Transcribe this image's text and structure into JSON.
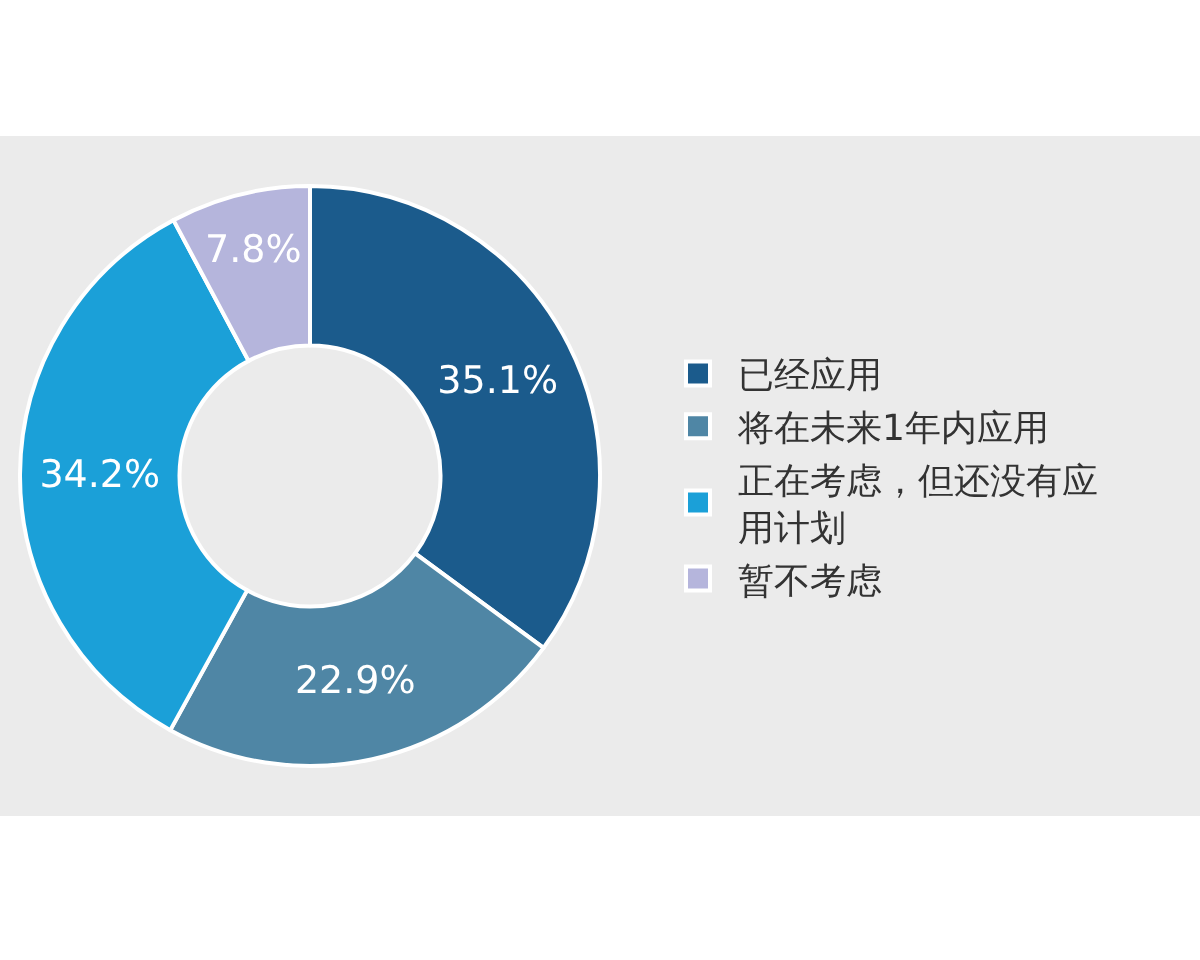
{
  "chart_data": {
    "type": "donut",
    "categories": [
      "已经应用",
      "将在未来1年内应用",
      "正在考虑，但还没有应用计划",
      "暂不考虑"
    ],
    "values": [
      35.1,
      22.9,
      34.2,
      7.8
    ],
    "colors": [
      "#1b5b8c",
      "#4f86a5",
      "#1ba0d8",
      "#b5b5dc"
    ],
    "value_labels": [
      "35.1%",
      "22.9%",
      "34.2%",
      "7.8%"
    ],
    "legend": "right"
  }
}
